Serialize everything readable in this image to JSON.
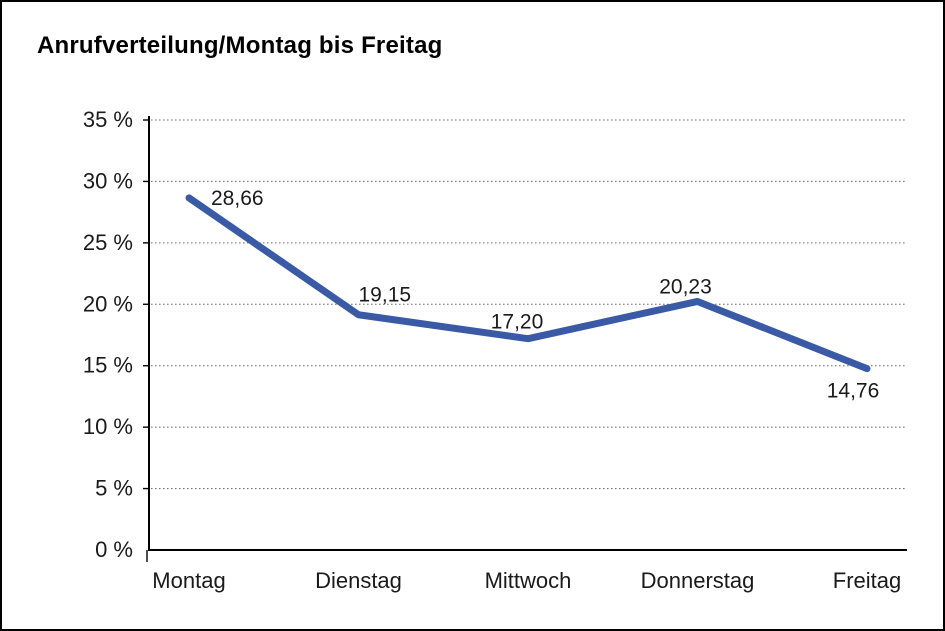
{
  "chart_data": {
    "type": "line",
    "title": "Anrufverteilung/Montag bis Freitag",
    "categories": [
      "Montag",
      "Dienstag",
      "Mittwoch",
      "Donnerstag",
      "Freitag"
    ],
    "values": [
      28.66,
      19.15,
      17.2,
      20.23,
      14.76
    ],
    "value_labels": [
      "28,66",
      "19,15",
      "17,20",
      "20,23",
      "14,76"
    ],
    "y_tick_labels": [
      "0 %",
      "5 %",
      "10 %",
      "15 %",
      "20 %",
      "25 %",
      "30 %",
      "35 %"
    ],
    "ylim": [
      0,
      35
    ],
    "y_step": 5,
    "grid": "horizontal-dotted",
    "legend": "none",
    "line_color": "#3A5AA5",
    "axis_color": "#000000",
    "gridline_color": "#6b6b6b",
    "text_color": "#1a1a1a"
  }
}
